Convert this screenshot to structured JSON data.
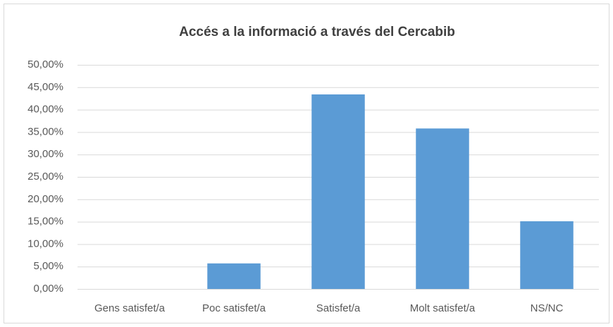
{
  "chart_data": {
    "type": "bar",
    "title": "Accés a la informació a través del Cercabib",
    "categories": [
      "Gens satisfet/a",
      "Poc satisfet/a",
      "Satisfet/a",
      "Molt satisfet/a",
      "NS/NC"
    ],
    "values": [
      0,
      5.7,
      43.4,
      35.8,
      15.1
    ],
    "color": "#5b9bd5",
    "ylim": [
      0,
      50
    ],
    "yticks": [
      {
        "value": 0,
        "label": "0,00%"
      },
      {
        "value": 5,
        "label": "5,00%"
      },
      {
        "value": 10,
        "label": "10,00%"
      },
      {
        "value": 15,
        "label": "15,00%"
      },
      {
        "value": 20,
        "label": "20,00%"
      },
      {
        "value": 25,
        "label": "25,00%"
      },
      {
        "value": 30,
        "label": "30,00%"
      },
      {
        "value": 35,
        "label": "35,00%"
      },
      {
        "value": 40,
        "label": "40,00%"
      },
      {
        "value": 45,
        "label": "45,00%"
      },
      {
        "value": 50,
        "label": "50,00%"
      }
    ],
    "grid": true
  }
}
